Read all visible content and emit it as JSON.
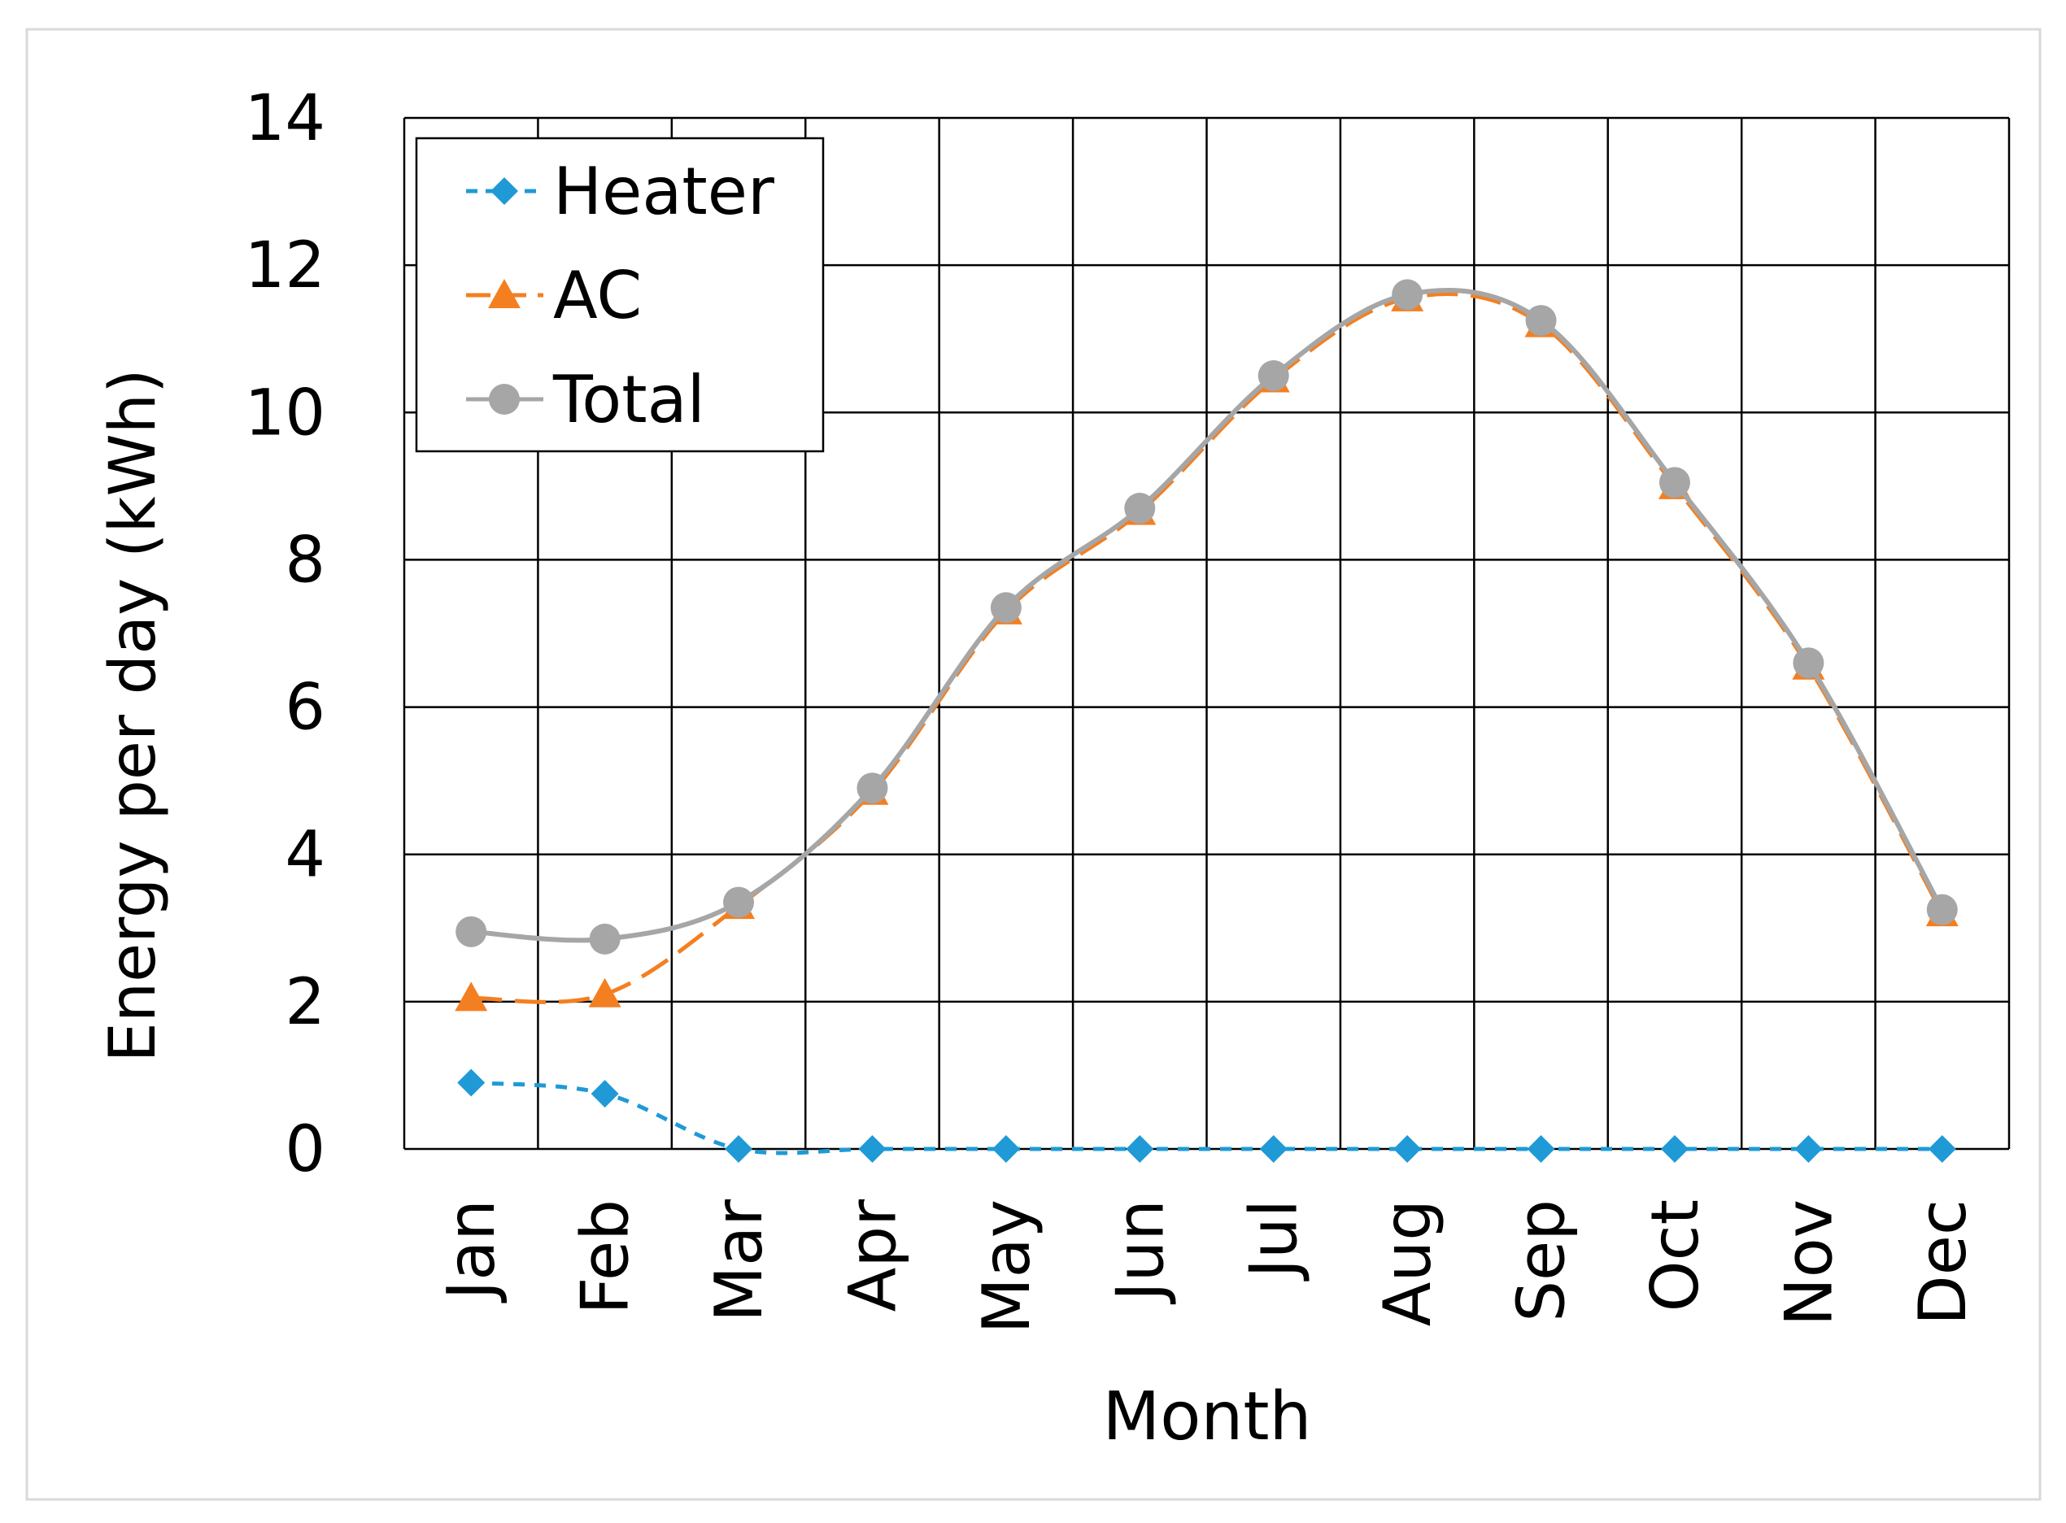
{
  "chart_data": {
    "type": "line",
    "title": "",
    "xlabel": "Month",
    "ylabel": "Energy per day (kWh)",
    "categories": [
      "Jan",
      "Feb",
      "Mar",
      "Apr",
      "May",
      "Jun",
      "Jul",
      "Aug",
      "Sep",
      "Oct",
      "Nov",
      "Dec"
    ],
    "ylim": [
      0,
      14
    ],
    "yticks": [
      "0",
      "2",
      "4",
      "6",
      "8",
      "10",
      "12",
      "14"
    ],
    "grid": true,
    "legend_position": "top-left",
    "series": [
      {
        "name": "Heater",
        "marker": "diamond",
        "line": "dashed",
        "color": "#1f9ad6",
        "values": [
          0.9,
          0.75,
          0,
          0,
          0,
          0,
          0,
          0,
          0,
          0,
          0,
          0
        ]
      },
      {
        "name": "AC",
        "marker": "triangle",
        "line": "long-dashed",
        "color": "#f47f20",
        "values": [
          2.05,
          2.1,
          3.3,
          4.85,
          7.3,
          8.65,
          10.45,
          11.55,
          11.2,
          9.0,
          6.55,
          3.2
        ]
      },
      {
        "name": "Total",
        "marker": "circle",
        "line": "solid",
        "color": "#a6a6a6",
        "values": [
          2.95,
          2.85,
          3.35,
          4.9,
          7.35,
          8.7,
          10.5,
          11.6,
          11.25,
          9.05,
          6.6,
          3.25
        ]
      }
    ]
  }
}
